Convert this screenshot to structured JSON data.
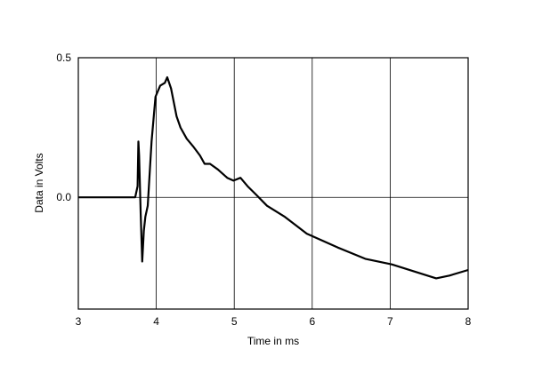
{
  "chart_data": {
    "type": "line",
    "xlabel": "Time in ms",
    "ylabel": "Data in Volts",
    "x": [
      3,
      3.73,
      3.76,
      3.77,
      3.78,
      3.8,
      3.82,
      3.84,
      3.86,
      3.89,
      3.94,
      3.99,
      4.05,
      4.11,
      4.14,
      4.19,
      4.26,
      4.31,
      4.39,
      4.48,
      4.56,
      4.62,
      4.69,
      4.79,
      4.91,
      4.99,
      5.08,
      5.17,
      5.28,
      5.42,
      5.65,
      5.93,
      6.33,
      6.68,
      7.02,
      7.36,
      7.59,
      7.76,
      8.0
    ],
    "series": [
      {
        "color": "#000000",
        "values": [
          0,
          0,
          0.04,
          0.2,
          0.15,
          -0.06,
          -0.23,
          -0.12,
          -0.07,
          -0.03,
          0.2,
          0.36,
          0.4,
          0.41,
          0.43,
          0.39,
          0.29,
          0.25,
          0.21,
          0.18,
          0.15,
          0.12,
          0.12,
          0.1,
          0.07,
          0.06,
          0.07,
          0.04,
          0.01,
          -0.03,
          -0.07,
          -0.13,
          -0.18,
          -0.22,
          -0.24,
          -0.27,
          -0.29,
          -0.28,
          -0.26
        ]
      }
    ],
    "xlim": [
      3,
      8
    ],
    "xticks": [
      3,
      4,
      5,
      6,
      7,
      8
    ],
    "ylim": [
      -0.4,
      0.5
    ],
    "yticks": [
      {
        "value": 0,
        "label": "0.0"
      },
      0.5
    ],
    "grid": true
  }
}
